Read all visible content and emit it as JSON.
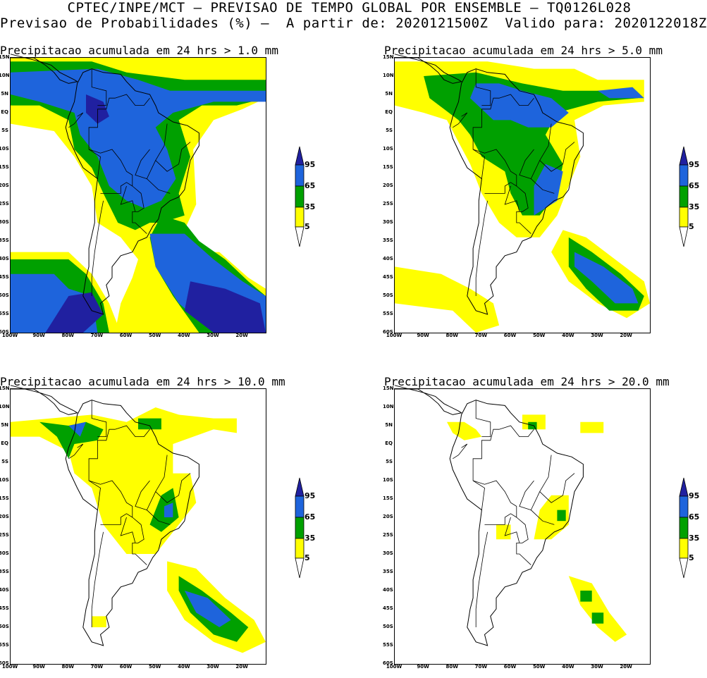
{
  "header": {
    "line1": "CPTEC/INPE/MCT – PREVISAO DE TEMPO GLOBAL POR ENSEMBLE – TQ0126L028",
    "line2": "Previsao de Probabilidades (%) –  A partir de: 2020121500Z  Valido para: 2020122018Z"
  },
  "axes": {
    "lat_labels": [
      "15N",
      "10N",
      "5N",
      "EQ",
      "5S",
      "10S",
      "15S",
      "20S",
      "25S",
      "30S",
      "35S",
      "40S",
      "45S",
      "50S",
      "55S",
      "60S"
    ],
    "lon_labels": [
      "100W",
      "90W",
      "80W",
      "70W",
      "60W",
      "50W",
      "40W",
      "30W",
      "20W"
    ]
  },
  "legend": {
    "levels": [
      "95",
      "65",
      "35",
      "5"
    ],
    "colors": {
      "lt5": "#ffffff",
      "5": "#ffff00",
      "35": "#00a000",
      "65": "#1e64dc",
      "95": "#2020a0"
    }
  },
  "panels": [
    {
      "title": "Precipitacao acumulada em 24 hrs > 1.0 mm"
    },
    {
      "title": "Precipitacao acumulada em 24 hrs > 5.0 mm"
    },
    {
      "title": "Precipitacao acumulada em 24 hrs > 10.0 mm"
    },
    {
      "title": "Precipitacao acumulada em 24 hrs > 20.0 mm"
    }
  ]
}
